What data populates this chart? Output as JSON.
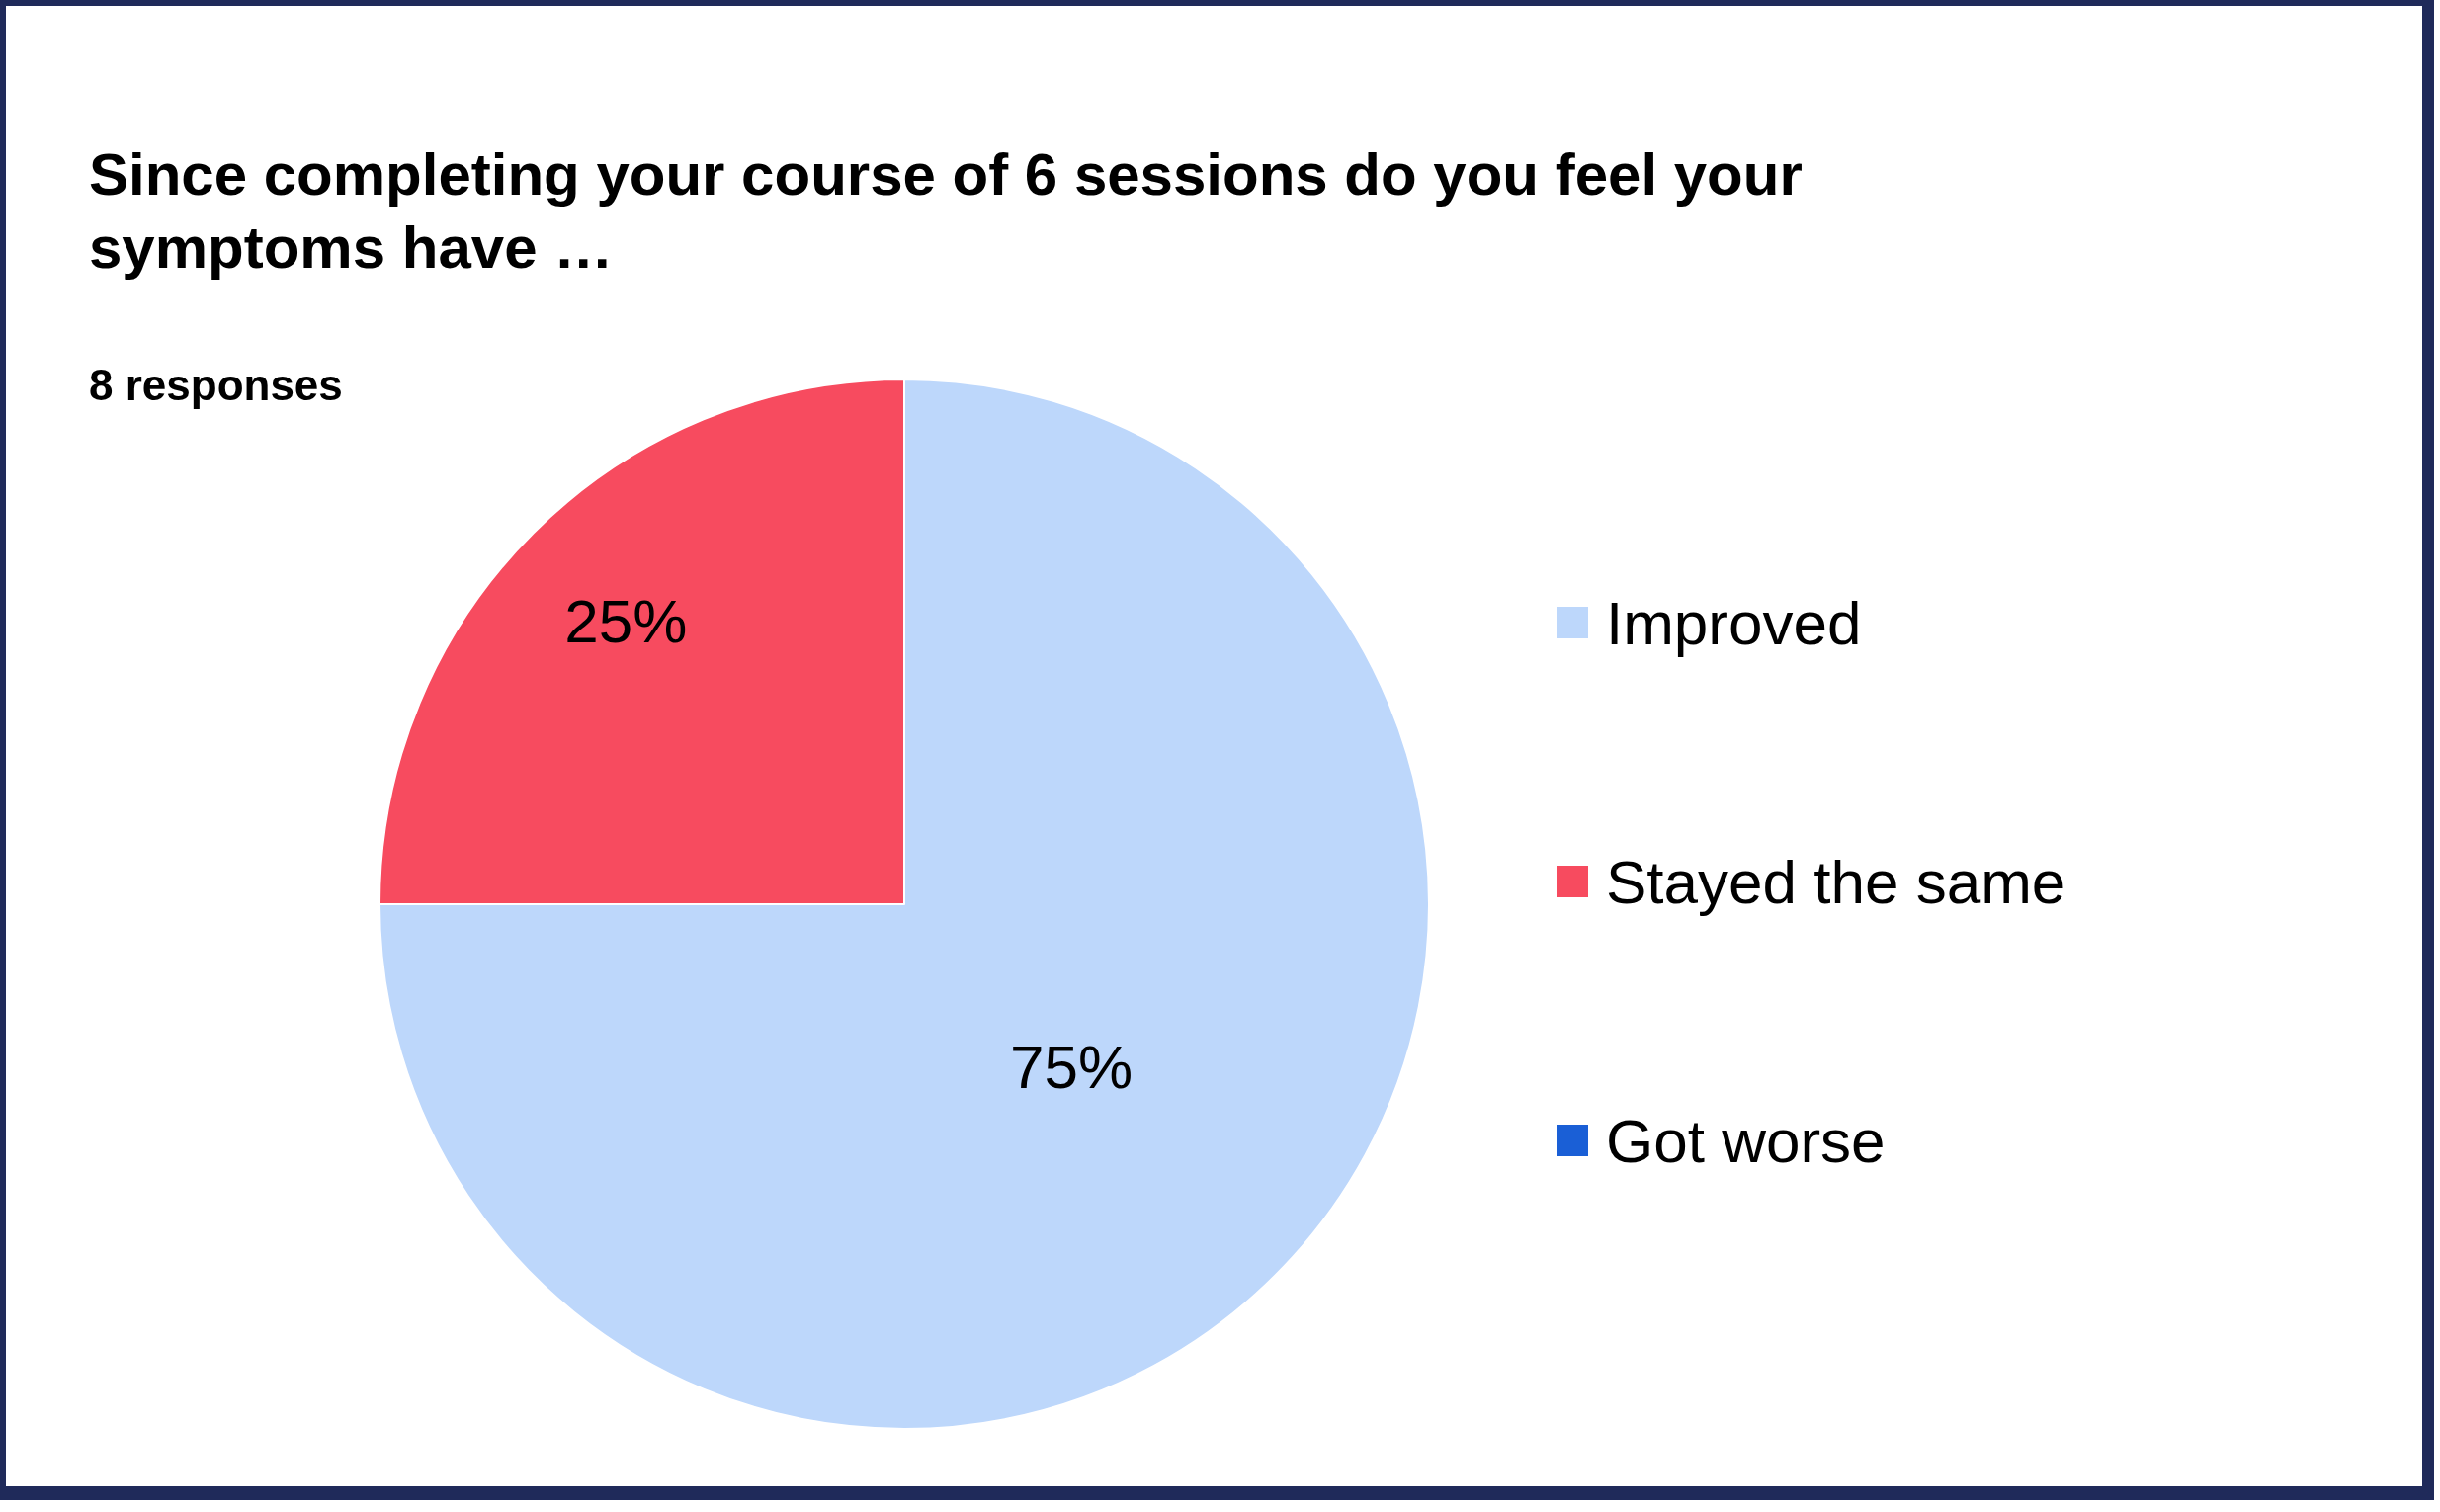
{
  "chart_data": {
    "type": "pie",
    "title": "Since completing your course of 6 sessions do you feel your symptoms have …",
    "subtitle": "8 responses",
    "categories": [
      "Improved",
      "Stayed the same",
      "Got worse"
    ],
    "values": [
      75,
      25,
      0
    ],
    "colors": [
      "#bdd7fb",
      "#f74b5f",
      "#1a5fd6"
    ],
    "value_labels": [
      "75%",
      "25%",
      null
    ],
    "legend": "right"
  }
}
